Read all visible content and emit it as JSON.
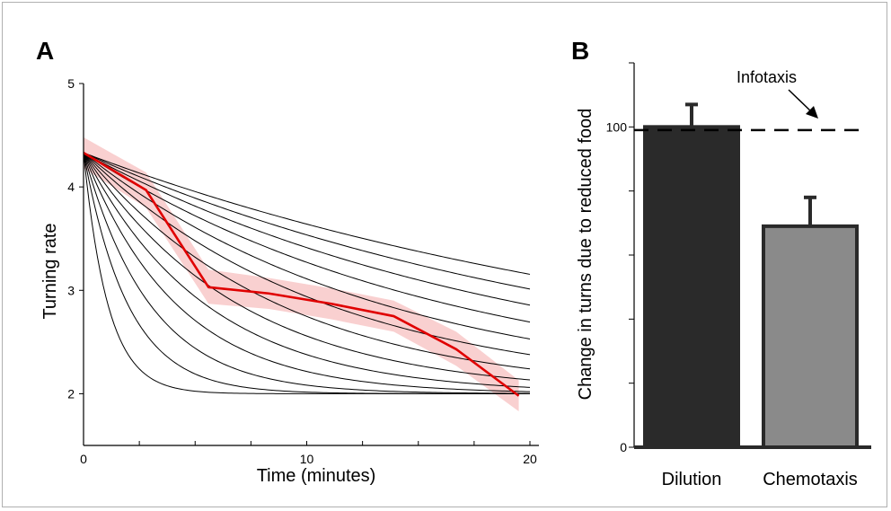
{
  "chart_data": [
    {
      "panel_label": "A",
      "type": "line",
      "title": "",
      "xlabel": "Time (minutes)",
      "ylabel": "Turning rate",
      "xlim": [
        0,
        20
      ],
      "ylim": [
        1.5,
        5
      ],
      "x_ticks": [
        0,
        10,
        20
      ],
      "y_ticks": [
        2,
        3,
        4,
        5
      ],
      "model_curves": {
        "start_value": 4.33,
        "end_value": 2.0,
        "time_constants_min": [
          1.1,
          2.0,
          3.0,
          4.2,
          5.5,
          7.0,
          8.8,
          11.0,
          13.5,
          16.5,
          20.0,
          24.0,
          28.5
        ]
      },
      "series": [
        {
          "x": [
            0,
            2.8,
            5.6,
            8.3,
            11.1,
            13.9,
            16.7,
            19.5
          ],
          "y": [
            4.33,
            3.97,
            3.03,
            2.97,
            2.87,
            2.75,
            2.43,
            1.98
          ],
          "ci_lower": [
            4.18,
            3.8,
            2.87,
            2.82,
            2.72,
            2.6,
            2.27,
            1.83
          ],
          "ci_upper": [
            4.48,
            4.14,
            3.2,
            3.12,
            3.02,
            2.9,
            2.6,
            2.13
          ],
          "color": "#e00000",
          "band_color": "#f8c8c8"
        }
      ],
      "grid": false
    },
    {
      "panel_label": "B",
      "type": "bar",
      "title": "",
      "ylabel": "Change in turns due to reduced food",
      "categories": [
        "Dilution",
        "Chemotaxis"
      ],
      "values": [
        100,
        69
      ],
      "errors": [
        7,
        9
      ],
      "colors": [
        "#2a2a2a",
        "#8a8a8a"
      ],
      "ylim": [
        0,
        120
      ],
      "y_ticks": [
        0,
        20,
        40,
        60,
        80,
        100,
        120
      ],
      "y_tick_labels": [
        "0",
        "100"
      ],
      "reference_line": {
        "value": 99,
        "label": "Infotaxis",
        "style": "dashed"
      },
      "grid": false
    }
  ]
}
